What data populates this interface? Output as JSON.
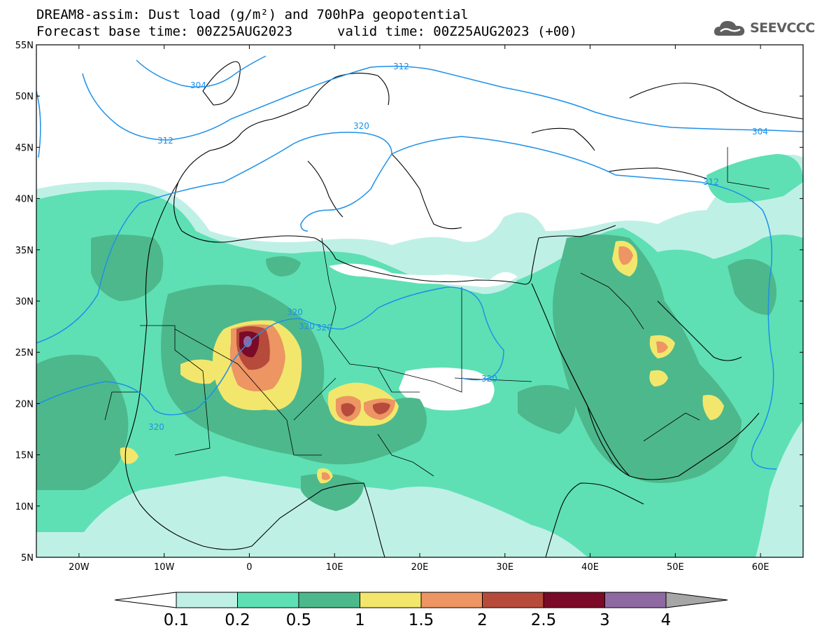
{
  "title": {
    "line1": "DREAM8-assim: Dust load (g/m²) and 700hPa geopotential",
    "line2": "Forecast base time: 00Z25AUG2023",
    "valid": "valid time: 00Z25AUG2023 (+00)"
  },
  "logo": {
    "text": "SEEVCCC",
    "icon": "cloud-icon"
  },
  "map": {
    "lon_range": [
      -25,
      65
    ],
    "lat_range": [
      5,
      55
    ],
    "lat_labels": [
      "55N",
      "50N",
      "45N",
      "40N",
      "35N",
      "30N",
      "25N",
      "20N",
      "15N",
      "10N",
      "5N"
    ],
    "lon_labels": [
      "20W",
      "10W",
      "0",
      "10E",
      "20E",
      "30E",
      "40E",
      "50E",
      "60E"
    ]
  },
  "contours": {
    "color": "#1e90e8",
    "labels": [
      "304",
      "312",
      "320",
      "312",
      "320",
      "320",
      "320",
      "320",
      "320",
      "312",
      "304"
    ]
  },
  "colorbar": {
    "colors": [
      "#bff0e6",
      "#5ee0b4",
      "#4db88c",
      "#f2e76c",
      "#ed9563",
      "#b64b3c",
      "#7a0a27",
      "#8f6aa2",
      "#a6a6a6"
    ],
    "labels": [
      "0.1",
      "0.2",
      "0.5",
      "1",
      "1.5",
      "2",
      "2.5",
      "3",
      "4"
    ]
  }
}
